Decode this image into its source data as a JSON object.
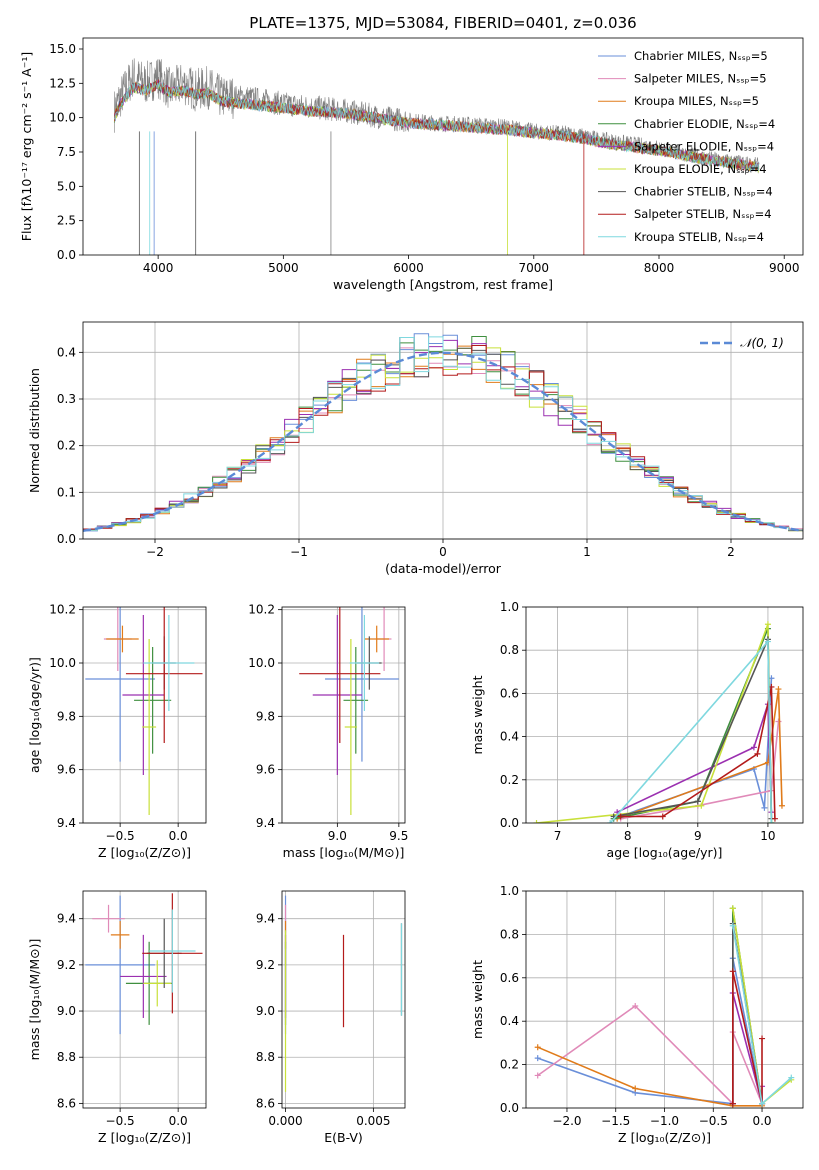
{
  "chart_data": [
    {
      "id": "spectrum",
      "type": "line",
      "title": "PLATE=1375, MJD=53084, FIBERID=0401, z=0.036",
      "xlabel": "wavelength [Angstrom, rest frame]",
      "ylabel": "Flux [fλ10⁻¹⁷ erg cm⁻² s⁻¹ A⁻¹]",
      "xlim": [
        3400,
        9150
      ],
      "ylim": [
        0,
        15.8
      ],
      "xticks": [
        4000,
        5000,
        6000,
        7000,
        8000,
        9000
      ],
      "yticks": [
        0.0,
        2.5,
        5.0,
        7.5,
        10.0,
        12.5,
        15.0
      ],
      "legend_position": "top-right",
      "observed": {
        "color": "#808080",
        "x": [
          3650,
          3700,
          3800,
          3900,
          4000,
          4100,
          4200,
          4300,
          4400,
          4500,
          4700,
          5000,
          5200,
          5500,
          5800,
          6000,
          6200,
          6500,
          6800,
          7000,
          7300,
          7600,
          8000,
          8400,
          8800
        ],
        "y": [
          10.5,
          11.5,
          13.0,
          12.5,
          13.0,
          12.0,
          12.5,
          12.0,
          12.2,
          11.5,
          11.5,
          11.0,
          10.8,
          10.5,
          10.0,
          9.8,
          9.6,
          9.5,
          9.3,
          9.0,
          8.8,
          8.3,
          7.8,
          7.0,
          6.5
        ]
      },
      "model_x": [
        3650,
        3700,
        3800,
        3900,
        4000,
        4100,
        4200,
        4300,
        4400,
        4500,
        4700,
        5000,
        5200,
        5500,
        5800,
        6000,
        6200,
        6500,
        6800,
        7000,
        7300,
        7600,
        8000,
        8400,
        8800
      ],
      "model_y": [
        10.0,
        11.0,
        12.2,
        12.0,
        12.4,
        11.8,
        12.0,
        11.7,
        11.8,
        11.2,
        11.0,
        10.7,
        10.5,
        10.3,
        9.9,
        9.6,
        9.5,
        9.3,
        9.1,
        8.9,
        8.6,
        8.1,
        7.6,
        6.9,
        6.4
      ],
      "series": [
        {
          "name": "Chabrier MILES, Nₛₛₚ=5",
          "color": "#6a8fd9"
        },
        {
          "name": "Salpeter MILES, Nₛₛₚ=5",
          "color": "#e08ab8"
        },
        {
          "name": "Kroupa MILES, Nₛₛₚ=5",
          "color": "#e07b1a"
        },
        {
          "name": "Chabrier ELODIE, Nₛₛₚ=4",
          "color": "#3f8f3f"
        },
        {
          "name": "Salpeter ELODIE, Nₛₛₚ=4",
          "color": "#9b30b0"
        },
        {
          "name": "Kroupa ELODIE, Nₛₛₚ=4",
          "color": "#c8e03a"
        },
        {
          "name": "Chabrier STELIB, Nₛₛₚ=4",
          "color": "#555555"
        },
        {
          "name": "Salpeter STELIB, Nₛₛₚ=4",
          "color": "#b31b1b"
        },
        {
          "name": "Kroupa STELIB, Nₛₛₚ=4",
          "color": "#7fd8df"
        }
      ]
    },
    {
      "id": "residuals",
      "type": "line",
      "xlabel": "(data-model)/error",
      "ylabel": "Normed distribution",
      "xlim": [
        -2.5,
        2.5
      ],
      "ylim": [
        0,
        0.465
      ],
      "xticks": [
        -2,
        -1,
        0,
        1,
        2
      ],
      "yticks": [
        0.0,
        0.1,
        0.2,
        0.3,
        0.4
      ],
      "grid": true,
      "legend_position": "top-right",
      "reference": {
        "name": "𝒩(0, 1)",
        "color": "#5b8ad6",
        "style": "dashed"
      },
      "bin_width": 0.1
    },
    {
      "id": "age_vs_Z",
      "type": "scatter",
      "xlabel": "Z [log₁₀(Z/Z⊙)]",
      "ylabel": "age  [log₁₀(age/yr)]",
      "xlim": [
        -0.82,
        0.24
      ],
      "ylim": [
        9.4,
        10.21
      ],
      "xticks": [
        -0.5,
        0.0
      ],
      "yticks": [
        9.4,
        9.6,
        9.8,
        10.0,
        10.2
      ],
      "grid": true,
      "points": [
        {
          "x": -0.5,
          "y": 9.94,
          "xerr": 0.3,
          "yerr": 0.31,
          "color": "#6a8fd9"
        },
        {
          "x": -0.52,
          "y": 10.09,
          "xerr": 0.12,
          "yerr": 0.12,
          "color": "#e08ab8"
        },
        {
          "x": -0.48,
          "y": 10.09,
          "xerr": 0.14,
          "yerr": 0.05,
          "color": "#e07b1a"
        },
        {
          "x": -0.22,
          "y": 9.86,
          "xerr": 0.16,
          "yerr": 0.2,
          "color": "#3f8f3f"
        },
        {
          "x": -0.3,
          "y": 9.88,
          "xerr": 0.18,
          "yerr": 0.3,
          "color": "#9b30b0"
        },
        {
          "x": -0.25,
          "y": 9.76,
          "xerr": 0.06,
          "yerr": 0.33,
          "color": "#c8e03a"
        },
        {
          "x": -0.12,
          "y": 10.0,
          "xerr": 0.1,
          "yerr": 0.1,
          "color": "#555555"
        },
        {
          "x": -0.12,
          "y": 9.96,
          "xerr": 0.33,
          "yerr": 0.26,
          "color": "#b31b1b"
        },
        {
          "x": -0.08,
          "y": 10.0,
          "xerr": 0.22,
          "yerr": 0.18,
          "color": "#7fd8df"
        }
      ]
    },
    {
      "id": "age_vs_mass",
      "type": "scatter",
      "xlabel": "mass [log₁₀(M/M⊙)]",
      "ylabel": "",
      "xlim": [
        8.55,
        9.55
      ],
      "ylim": [
        9.4,
        10.21
      ],
      "xticks": [
        9.0,
        9.5
      ],
      "yticks": [
        9.4,
        9.6,
        9.8,
        10.0,
        10.2
      ],
      "grid": true,
      "points": [
        {
          "x": 9.2,
          "y": 9.94,
          "xerr": 0.3,
          "yerr": 0.31,
          "color": "#6a8fd9"
        },
        {
          "x": 9.38,
          "y": 10.09,
          "xerr": 0.06,
          "yerr": 0.12,
          "color": "#e08ab8"
        },
        {
          "x": 9.32,
          "y": 10.09,
          "xerr": 0.1,
          "yerr": 0.05,
          "color": "#e07b1a"
        },
        {
          "x": 9.15,
          "y": 9.86,
          "xerr": 0.1,
          "yerr": 0.2,
          "color": "#3f8f3f"
        },
        {
          "x": 9.0,
          "y": 9.88,
          "xerr": 0.2,
          "yerr": 0.3,
          "color": "#9b30b0"
        },
        {
          "x": 9.11,
          "y": 9.76,
          "xerr": 0.05,
          "yerr": 0.33,
          "color": "#c8e03a"
        },
        {
          "x": 9.26,
          "y": 10.0,
          "xerr": 0.1,
          "yerr": 0.1,
          "color": "#555555"
        },
        {
          "x": 9.02,
          "y": 9.96,
          "xerr": 0.33,
          "yerr": 0.26,
          "color": "#b31b1b"
        },
        {
          "x": 9.22,
          "y": 10.0,
          "xerr": 0.12,
          "yerr": 0.18,
          "color": "#7fd8df"
        }
      ]
    },
    {
      "id": "weight_vs_age",
      "type": "line",
      "xlabel": "age  [log₁₀(age/yr)]",
      "ylabel": "mass weight",
      "xlim": [
        6.55,
        10.5
      ],
      "ylim": [
        0,
        1.0
      ],
      "xticks": [
        7,
        8,
        9,
        10
      ],
      "yticks": [
        0.0,
        0.2,
        0.4,
        0.6,
        0.8,
        1.0
      ],
      "grid": true,
      "series": [
        {
          "color": "#6a8fd9",
          "x": [
            7.8,
            9.8,
            9.95,
            10.05
          ],
          "y": [
            0.02,
            0.25,
            0.07,
            0.67
          ]
        },
        {
          "color": "#e08ab8",
          "x": [
            7.9,
            9.0,
            10.05,
            10.15
          ],
          "y": [
            0.02,
            0.08,
            0.15,
            0.47
          ]
        },
        {
          "color": "#e07b1a",
          "x": [
            7.85,
            10.0,
            10.15,
            10.2
          ],
          "y": [
            0.02,
            0.28,
            0.62,
            0.08
          ]
        },
        {
          "color": "#3f8f3f",
          "x": [
            7.8,
            9.0,
            10.0,
            10.05
          ],
          "y": [
            0.02,
            0.1,
            0.9,
            0.0
          ]
        },
        {
          "color": "#9b30b0",
          "x": [
            7.85,
            9.8,
            10.0,
            10.05
          ],
          "y": [
            0.05,
            0.35,
            0.55,
            0.05
          ]
        },
        {
          "color": "#c8e03a",
          "x": [
            6.7,
            9.05,
            10.0,
            10.05
          ],
          "y": [
            0.0,
            0.08,
            0.92,
            0.0
          ]
        },
        {
          "color": "#555555",
          "x": [
            7.8,
            9.0,
            10.0,
            10.05
          ],
          "y": [
            0.03,
            0.1,
            0.85,
            0.02
          ]
        },
        {
          "color": "#b31b1b",
          "x": [
            7.9,
            8.5,
            9.85,
            10.05,
            10.1
          ],
          "y": [
            0.03,
            0.03,
            0.32,
            0.63,
            0.02
          ]
        },
        {
          "color": "#7fd8df",
          "x": [
            7.75,
            10.0,
            10.05
          ],
          "y": [
            0.0,
            0.84,
            0.0
          ]
        }
      ]
    },
    {
      "id": "mass_vs_Z",
      "type": "scatter",
      "xlabel": "Z [log₁₀(Z/Z⊙)]",
      "ylabel": "mass [log₁₀(M/M⊙)]",
      "xlim": [
        -0.82,
        0.24
      ],
      "ylim": [
        8.58,
        9.52
      ],
      "xticks": [
        -0.5,
        0.0
      ],
      "yticks": [
        8.6,
        8.8,
        9.0,
        9.2,
        9.4
      ],
      "grid": true,
      "points": [
        {
          "x": -0.5,
          "y": 9.2,
          "xerr": 0.3,
          "yerr": 0.3,
          "color": "#6a8fd9"
        },
        {
          "x": -0.6,
          "y": 9.4,
          "xerr": 0.14,
          "yerr": 0.06,
          "color": "#e08ab8"
        },
        {
          "x": -0.5,
          "y": 9.33,
          "xerr": 0.08,
          "yerr": 0.06,
          "color": "#e07b1a"
        },
        {
          "x": -0.25,
          "y": 9.12,
          "xerr": 0.2,
          "yerr": 0.18,
          "color": "#3f8f3f"
        },
        {
          "x": -0.3,
          "y": 9.15,
          "xerr": 0.2,
          "yerr": 0.18,
          "color": "#9b30b0"
        },
        {
          "x": -0.18,
          "y": 9.12,
          "xerr": 0.12,
          "yerr": 0.1,
          "color": "#c8e03a"
        },
        {
          "x": -0.12,
          "y": 9.25,
          "xerr": 0.15,
          "yerr": 0.15,
          "color": "#555555"
        },
        {
          "x": -0.05,
          "y": 9.25,
          "xerr": 0.26,
          "yerr": 0.26,
          "color": "#b31b1b"
        },
        {
          "x": -0.05,
          "y": 9.26,
          "xerr": 0.2,
          "yerr": 0.18,
          "color": "#7fd8df"
        }
      ]
    },
    {
      "id": "mass_vs_ebv",
      "type": "scatter",
      "xlabel": "E(B-V)",
      "ylabel": "",
      "xlim": [
        -0.0002,
        0.0068
      ],
      "ylim": [
        8.58,
        9.52
      ],
      "xticks": [
        0.0,
        0.005
      ],
      "yticks": [
        8.6,
        8.8,
        9.0,
        9.2,
        9.4
      ],
      "grid": true,
      "points": [
        {
          "x": 0.0,
          "y": 9.2,
          "yerr": 0.3,
          "color": "#6a8fd9"
        },
        {
          "x": 0.0,
          "y": 9.4,
          "yerr": 0.06,
          "color": "#e08ab8"
        },
        {
          "x": 0.0,
          "y": 9.33,
          "yerr": 0.06,
          "color": "#e07b1a"
        },
        {
          "x": 0.0,
          "y": 9.12,
          "yerr": 0.18,
          "color": "#3f8f3f"
        },
        {
          "x": 0.0,
          "y": 9.15,
          "yerr": 0.18,
          "color": "#9b30b0"
        },
        {
          "x": 0.0,
          "y": 9.0,
          "yerr": 0.35,
          "color": "#c8e03a"
        },
        {
          "x": 0.0066,
          "y": 9.18,
          "yerr": 0.2,
          "color": "#555555"
        },
        {
          "x": 0.0033,
          "y": 9.13,
          "yerr": 0.2,
          "color": "#b31b1b"
        },
        {
          "x": 0.0066,
          "y": 9.18,
          "yerr": 0.2,
          "color": "#7fd8df"
        }
      ]
    },
    {
      "id": "weight_vs_Z",
      "type": "line",
      "xlabel": "Z [log₁₀(Z/Z⊙)]",
      "ylabel": "mass weight",
      "xlim": [
        -2.42,
        0.42
      ],
      "ylim": [
        0,
        1.0
      ],
      "xticks": [
        -2.0,
        -1.5,
        -1.0,
        -0.5,
        0.0
      ],
      "yticks": [
        0.0,
        0.2,
        0.4,
        0.6,
        0.8,
        1.0
      ],
      "grid": true,
      "series": [
        {
          "color": "#6a8fd9",
          "x": [
            -2.3,
            -1.3,
            -0.3,
            -0.3,
            0.0
          ],
          "y": [
            0.23,
            0.07,
            0.02,
            0.69,
            0.02
          ]
        },
        {
          "color": "#e08ab8",
          "x": [
            -2.3,
            -1.3,
            -0.3,
            -0.3,
            0.0
          ],
          "y": [
            0.15,
            0.47,
            0.02,
            0.35,
            0.02
          ]
        },
        {
          "color": "#e07b1a",
          "x": [
            -2.3,
            -1.3,
            -0.3,
            0.0
          ],
          "y": [
            0.28,
            0.09,
            0.01,
            0.01
          ]
        },
        {
          "color": "#3f8f3f",
          "x": [
            -0.3,
            -0.3,
            0.0
          ],
          "y": [
            0.02,
            0.92,
            0.02
          ]
        },
        {
          "color": "#9b30b0",
          "x": [
            -0.3,
            -0.3,
            0.0,
            0.0
          ],
          "y": [
            0.02,
            0.53,
            0.02,
            0.1
          ]
        },
        {
          "color": "#c8e03a",
          "x": [
            -0.3,
            0.0,
            0.3
          ],
          "y": [
            0.92,
            0.02,
            0.13
          ]
        },
        {
          "color": "#555555",
          "x": [
            -0.3,
            -0.3,
            0.0
          ],
          "y": [
            0.02,
            0.85,
            0.02
          ]
        },
        {
          "color": "#b31b1b",
          "x": [
            -0.3,
            -0.3,
            0.0,
            0.0
          ],
          "y": [
            0.02,
            0.63,
            0.02,
            0.32
          ]
        },
        {
          "color": "#7fd8df",
          "x": [
            -0.3,
            0.0,
            0.3
          ],
          "y": [
            0.84,
            0.02,
            0.14
          ]
        }
      ]
    }
  ]
}
